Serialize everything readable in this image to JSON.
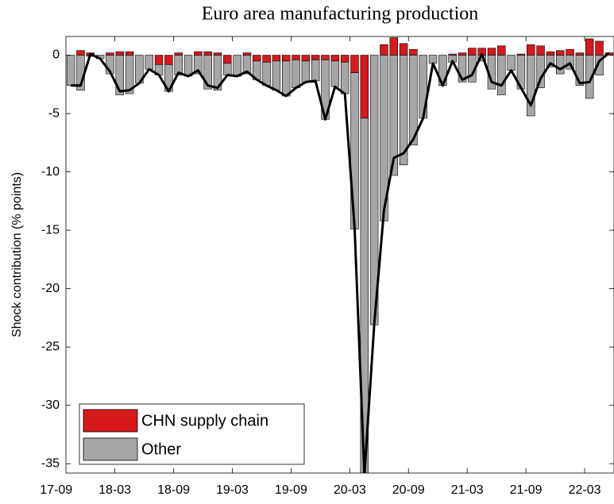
{
  "chart_data": {
    "type": "stacked_bar_line",
    "title": "Euro area manufacturing production",
    "y_label": "Shock contribution (% points)",
    "x": [
      "17-10",
      "17-11",
      "17-12",
      "18-01",
      "18-02",
      "18-03",
      "18-04",
      "18-05",
      "18-06",
      "18-07",
      "18-08",
      "18-09",
      "18-10",
      "18-11",
      "18-12",
      "19-01",
      "19-02",
      "19-03",
      "19-04",
      "19-05",
      "19-06",
      "19-07",
      "19-08",
      "19-09",
      "19-10",
      "19-11",
      "19-12",
      "20-01",
      "20-02",
      "20-03",
      "20-04",
      "20-05",
      "20-06",
      "20-07",
      "20-08",
      "20-09",
      "20-10",
      "20-11",
      "20-12",
      "21-01",
      "21-02",
      "21-03",
      "21-04",
      "21-05",
      "21-06",
      "21-07",
      "21-08",
      "21-09",
      "21-10",
      "21-11",
      "21-12",
      "22-01",
      "22-02",
      "22-03",
      "22-04",
      "22-05"
    ],
    "series": [
      {
        "name": "CHN supply chain",
        "color": "#d7191c",
        "values": [
          0,
          0.4,
          0.2,
          0,
          0.2,
          0.3,
          0.3,
          0,
          0,
          -0.8,
          -0.8,
          0.2,
          0,
          0.3,
          0.3,
          0.2,
          -0.7,
          0,
          0.2,
          -0.5,
          -0.6,
          -0.5,
          -0.5,
          -0.4,
          -0.5,
          -0.4,
          -0.4,
          -0.5,
          -0.6,
          -1.5,
          -5.4,
          0,
          0.9,
          1.5,
          1.0,
          0.5,
          0,
          0,
          0,
          0.1,
          0.2,
          0.6,
          0.6,
          0.6,
          0.8,
          0,
          0.1,
          0.9,
          0.8,
          0.3,
          0.4,
          0.5,
          0.2,
          1.4,
          1.2,
          0.2
        ]
      },
      {
        "name": "Other",
        "color": "#a6a6a6",
        "values": [
          -2.6,
          -3.0,
          -0.1,
          -0.3,
          -1.6,
          -3.4,
          -3.3,
          -2.4,
          -1.2,
          -0.9,
          -2.3,
          -1.7,
          -1.8,
          -1.6,
          -2.9,
          -3.0,
          -1.0,
          -1.8,
          -1.6,
          -1.6,
          -2.0,
          -2.5,
          -3.0,
          -2.4,
          -1.8,
          -1.8,
          -5.1,
          -2.2,
          -2.7,
          -13.4,
          -30.6,
          -23.1,
          -14.2,
          -10.3,
          -9.4,
          -7.7,
          -5.4,
          -0.7,
          -2.6,
          -0.6,
          -2.3,
          -2.3,
          -0.5,
          -2.9,
          -3.4,
          -1.3,
          -2.9,
          -5.2,
          -2.8,
          -1.0,
          -1.6,
          -1.2,
          -2.6,
          -3.7,
          -1.7,
          0
        ]
      }
    ],
    "line_color": "#000000",
    "xlim": [
      "17-10",
      "22-06"
    ],
    "xticks": [
      "17-09",
      "18-03",
      "18-09",
      "19-03",
      "19-09",
      "20-03",
      "20-09",
      "21-03",
      "21-09",
      "22-03"
    ],
    "ylim": [
      -35.8,
      1.6
    ],
    "yticks": [
      -35,
      -30,
      -25,
      -20,
      -15,
      -10,
      -5,
      0
    ],
    "legend": "lower left"
  }
}
